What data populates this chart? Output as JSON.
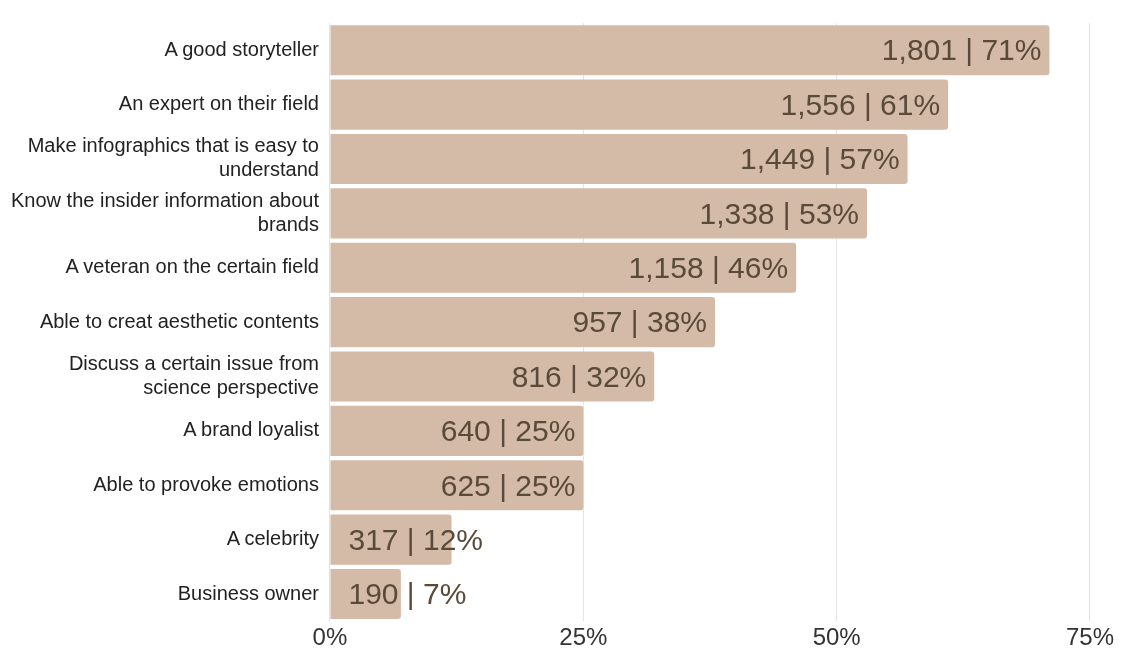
{
  "chart_data": {
    "type": "bar",
    "orientation": "horizontal",
    "categories": [
      "A good storyteller",
      "An expert on their field",
      "Make infographics that is easy to understand",
      "Know the insider information about brands",
      "A veteran on the certain field",
      "Able to creat aesthetic contents",
      "Discuss a certain issue from science perspective",
      "A brand loyalist",
      "Able to provoke emotions",
      "A celebrity",
      "Business owner"
    ],
    "values": [
      71,
      61,
      57,
      53,
      46,
      38,
      32,
      25,
      25,
      12,
      7
    ],
    "value_labels": [
      "1,801 | 71%",
      "1,556 | 61%",
      "1,449 | 57%",
      "1,338 | 53%",
      "1,158 | 46%",
      "957 | 38%",
      "816 | 32%",
      "640 | 25%",
      "625 | 25%",
      "317 | 12%",
      "190 | 7%"
    ],
    "color": "#d4bba8",
    "xlim": [
      0,
      75
    ],
    "xticks": [
      {
        "value": 0,
        "label": "0%"
      },
      {
        "value": 25,
        "label": "25%"
      },
      {
        "value": 50,
        "label": "50%"
      },
      {
        "value": 75,
        "label": "75%"
      }
    ],
    "grid": "x",
    "legend": false
  }
}
